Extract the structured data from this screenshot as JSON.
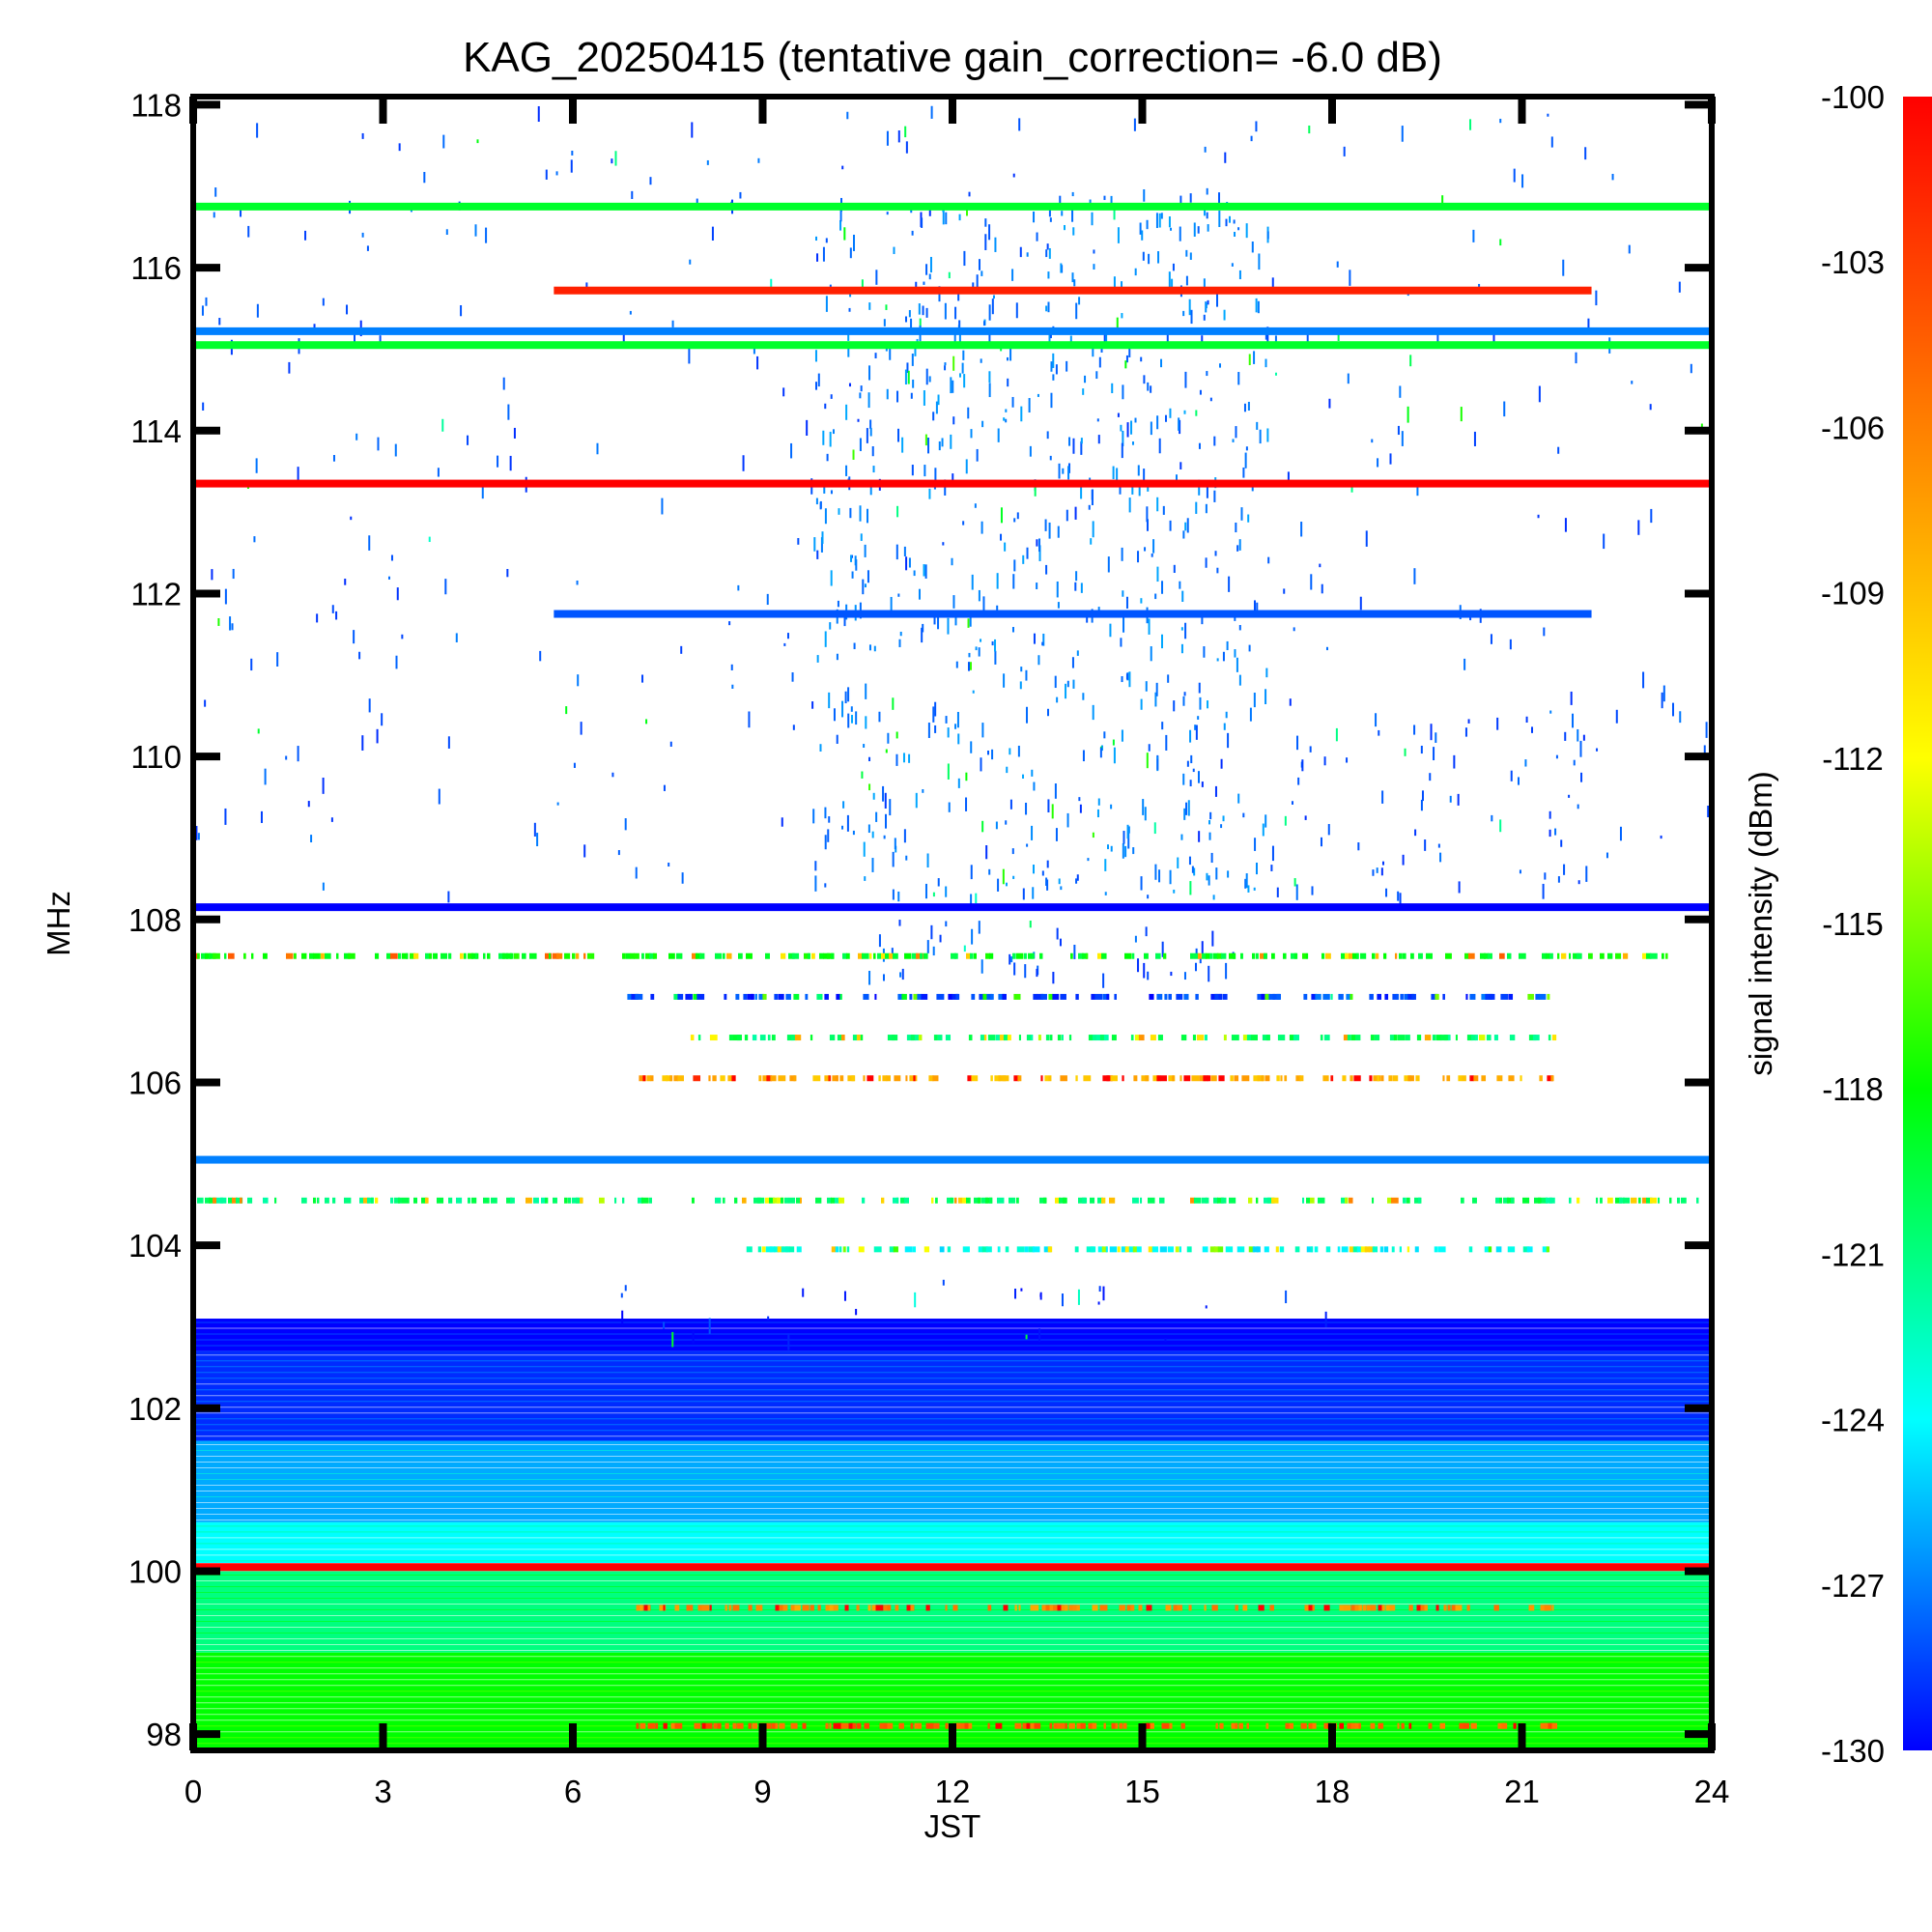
{
  "chart_data": {
    "type": "heatmap",
    "title": "KAG_20250415 (tentative gain_correction= -6.0 dB)",
    "xlabel": "JST",
    "ylabel": "MHz",
    "colorbar_label": "signal intensity (dBm)",
    "xlim": [
      0,
      24
    ],
    "ylim": [
      97.8,
      118.1
    ],
    "x_ticks": [
      "0",
      "3",
      "6",
      "9",
      "12",
      "15",
      "18",
      "21",
      "24"
    ],
    "y_ticks": [
      "98",
      "100",
      "102",
      "104",
      "106",
      "108",
      "110",
      "112",
      "114",
      "116",
      "118"
    ],
    "colorbar_range": [
      -130,
      -100
    ],
    "colorbar_ticks": [
      "-100",
      "-103",
      "-106",
      "-109",
      "-112",
      "-115",
      "-118",
      "-121",
      "-124",
      "-127",
      "-130"
    ],
    "colormap": [
      "#0000ff",
      "#00ffff",
      "#00ff00",
      "#ffff00",
      "#ff8000",
      "#ff0000"
    ],
    "continuous_lines": [
      {
        "freq": 116.75,
        "t0": 0,
        "t1": 24,
        "dbm": -119
      },
      {
        "freq": 115.72,
        "t0": 5.7,
        "t1": 22.1,
        "dbm": -101.5
      },
      {
        "freq": 115.22,
        "t0": 0,
        "t1": 24,
        "dbm": -127
      },
      {
        "freq": 115.05,
        "t0": 0,
        "t1": 24,
        "dbm": -119
      },
      {
        "freq": 113.35,
        "t0": 0,
        "t1": 24,
        "dbm": -100
      },
      {
        "freq": 111.75,
        "t0": 5.7,
        "t1": 22.1,
        "dbm": -128
      },
      {
        "freq": 108.15,
        "t0": 0,
        "t1": 24,
        "dbm": -130
      },
      {
        "freq": 105.05,
        "t0": 0,
        "t1": 24,
        "dbm": -127
      },
      {
        "freq": 100.05,
        "t0": 0,
        "t1": 24,
        "dbm": -100
      }
    ],
    "dashed_lines": [
      {
        "freq": 107.55,
        "t0": 0,
        "t1": 23.3,
        "dbm": -120
      },
      {
        "freq": 107.05,
        "t0": 6.8,
        "t1": 21.5,
        "dbm": -130
      },
      {
        "freq": 106.55,
        "t0": 7.8,
        "t1": 21.5,
        "dbm": -122
      },
      {
        "freq": 106.05,
        "t0": 6.8,
        "t1": 21.5,
        "dbm": -110
      },
      {
        "freq": 104.55,
        "t0": 0,
        "t1": 24,
        "dbm": -122
      },
      {
        "freq": 103.95,
        "t0": 8.5,
        "t1": 21.5,
        "dbm": -125
      },
      {
        "freq": 99.55,
        "t0": 7.0,
        "t1": 21.5,
        "dbm": -108
      },
      {
        "freq": 98.1,
        "t0": 7.0,
        "t1": 21.5,
        "dbm": -106
      }
    ],
    "background_bands": [
      {
        "f0": 102.7,
        "f1": 103.1,
        "dbm": -130
      },
      {
        "f0": 101.6,
        "f1": 102.7,
        "dbm": -129
      },
      {
        "f0": 100.6,
        "f1": 101.6,
        "dbm": -126
      },
      {
        "f0": 100.1,
        "f1": 100.6,
        "dbm": -124
      },
      {
        "f0": 99.0,
        "f1": 100.0,
        "dbm": -121
      },
      {
        "f0": 97.8,
        "f1": 99.0,
        "dbm": -118
      }
    ],
    "activity_regions": [
      {
        "f0": 108.3,
        "f1": 118.0,
        "t0": 0,
        "t1": 24,
        "density": 0.07,
        "dbm": -129
      },
      {
        "f0": 108.3,
        "f1": 117.0,
        "t0": 9.8,
        "t1": 17.0,
        "density": 0.42,
        "dbm": -128
      },
      {
        "f0": 108.3,
        "f1": 110.5,
        "t0": 17.0,
        "t1": 22.0,
        "density": 0.22,
        "dbm": -129
      },
      {
        "f0": 107.3,
        "f1": 108.0,
        "t0": 10.5,
        "t1": 16.5,
        "density": 0.45,
        "dbm": -129
      },
      {
        "f0": 102.8,
        "f1": 103.6,
        "t0": 6.0,
        "t1": 18.0,
        "density": 0.12,
        "dbm": -130
      }
    ],
    "grid": false,
    "legend": "colorbar right"
  }
}
